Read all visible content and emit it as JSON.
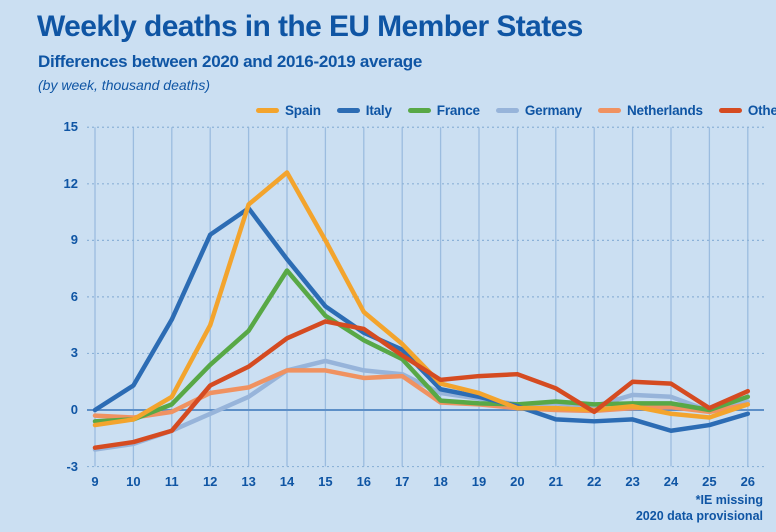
{
  "page": {
    "background_color": "#cbdff2",
    "text_color": "#0f55a4"
  },
  "header": {
    "title": "Weekly deaths in the EU Member States",
    "subtitle": "Differences between  2020 and 2016-2019 average",
    "unit_note": "(by week, thousand deaths)"
  },
  "footnote": {
    "line1": "*IE missing",
    "line2": "2020 data provisional"
  },
  "chart_data": {
    "type": "line",
    "title": "Weekly deaths in the EU Member States",
    "xlabel": "week",
    "ylabel": "thousand deaths",
    "x": [
      9,
      10,
      11,
      12,
      13,
      14,
      15,
      16,
      17,
      18,
      19,
      20,
      21,
      22,
      23,
      24,
      25,
      26
    ],
    "y_ticks": [
      15,
      12,
      9,
      6,
      3,
      0,
      -3
    ],
    "ylim": [
      -3,
      15
    ],
    "grid": "vertical solid line per week; dashed horizontal line every 3; solid zero line",
    "legend_position": "top",
    "grid_colors": {
      "vertical": "#9bbcdf",
      "dashed_horizontal": "#8cb2d8",
      "zero_line": "#5d8fc7"
    },
    "series": [
      {
        "name": "Spain",
        "color": "#f3a42d",
        "values": [
          -0.8,
          -0.5,
          0.7,
          4.5,
          10.9,
          12.6,
          9.0,
          5.2,
          3.5,
          1.4,
          0.9,
          0.1,
          0.1,
          0.0,
          0.2,
          -0.2,
          -0.4,
          0.3
        ]
      },
      {
        "name": "Italy",
        "color": "#2c6cb4",
        "values": [
          0.0,
          1.3,
          4.8,
          9.3,
          10.7,
          8.0,
          5.5,
          4.1,
          3.2,
          1.1,
          0.7,
          0.2,
          -0.5,
          -0.6,
          -0.5,
          -1.1,
          -0.8,
          -0.2
        ]
      },
      {
        "name": "France",
        "color": "#58a846",
        "values": [
          -0.6,
          -0.5,
          0.3,
          2.4,
          4.2,
          7.4,
          5.0,
          3.7,
          2.7,
          0.5,
          0.35,
          0.3,
          0.45,
          0.3,
          0.35,
          0.35,
          0.0,
          0.7
        ]
      },
      {
        "name": "Germany",
        "color": "#97b4da",
        "values": [
          -2.1,
          -1.8,
          -1.1,
          -0.2,
          0.7,
          2.1,
          2.6,
          2.1,
          1.9,
          0.9,
          0.6,
          0.3,
          0.35,
          0.2,
          0.8,
          0.7,
          -0.05,
          0.45
        ]
      },
      {
        "name": "Netherlands",
        "color": "#f09261",
        "values": [
          -0.3,
          -0.4,
          -0.1,
          0.9,
          1.2,
          2.1,
          2.1,
          1.7,
          1.8,
          0.4,
          0.3,
          0.1,
          0.0,
          -0.05,
          0.1,
          0.15,
          -0.1,
          0.3
        ]
      },
      {
        "name": "Other EU countries*",
        "color": "#d54b21",
        "values": [
          -2.0,
          -1.7,
          -1.1,
          1.3,
          2.3,
          3.8,
          4.7,
          4.3,
          2.9,
          1.6,
          1.8,
          1.9,
          1.15,
          -0.1,
          1.5,
          1.4,
          0.1,
          1.0
        ]
      }
    ]
  }
}
